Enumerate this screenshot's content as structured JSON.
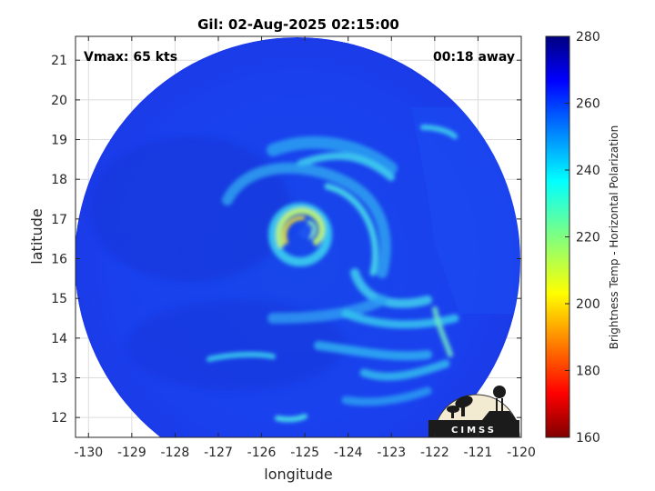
{
  "chart_data": {
    "type": "heatmap",
    "title": "Gil: 02-Aug-2025 02:15:00",
    "xlabel": "longitude",
    "ylabel": "latitude",
    "xlim": [
      -130.3,
      -120.0
    ],
    "ylim": [
      11.5,
      21.6
    ],
    "x_ticks": [
      -130,
      -129,
      -128,
      -127,
      -126,
      -125,
      -124,
      -123,
      -122,
      -121,
      -120
    ],
    "y_ticks": [
      12,
      13,
      14,
      15,
      16,
      17,
      18,
      19,
      20,
      21
    ],
    "grid": true,
    "center": {
      "lon": -125.1,
      "lat": 16.55
    },
    "annotations": {
      "vmax": "Vmax: 65 kts",
      "time_offset": "00:18 away"
    },
    "colorbar": {
      "label": "Brightness Temp - Horizontal Polarization",
      "min": 160,
      "max": 280,
      "ticks": [
        160,
        180,
        200,
        220,
        240,
        260,
        280
      ],
      "colormap": "jet"
    },
    "logo": "CIMSS"
  },
  "colors": {
    "background_field": "#1a3ff0",
    "rain_band": "#33d6f2",
    "eyewall": "#f2e21a",
    "grid": "#dcdcdc",
    "axis": "#262626"
  }
}
